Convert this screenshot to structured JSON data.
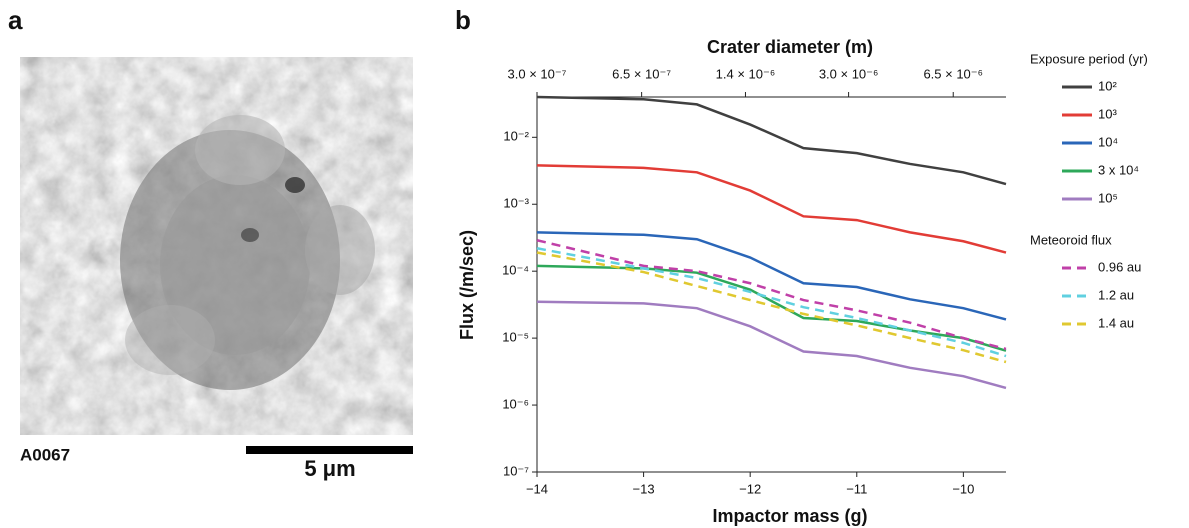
{
  "image_panel": {
    "label": "a",
    "sample": "A0067",
    "scale_bar": "5 μm"
  },
  "chart_data": {
    "type": "line",
    "panel_label": "b",
    "x_label": "Impactor mass (g)",
    "y_label": "Flux (/m/sec)",
    "x2_label": "Crater diameter (m)",
    "x": [
      -14,
      -13,
      -12.5,
      -12,
      -11.5,
      -11,
      -10.5,
      -10,
      -9.6
    ],
    "xlim": [
      -14,
      -9.6
    ],
    "xticks": [
      {
        "value": -14,
        "label": "−14"
      },
      {
        "value": -13,
        "label": "−13"
      },
      {
        "value": -12,
        "label": "−12"
      },
      {
        "value": -11,
        "label": "−11"
      },
      {
        "value": -10,
        "label": "−10"
      }
    ],
    "y_scale": "log",
    "ylim": [
      1e-07,
      0.04
    ],
    "yticks": [
      {
        "value": 1e-07,
        "label": "10⁻⁷"
      },
      {
        "value": 1e-06,
        "label": "10⁻⁶"
      },
      {
        "value": 1e-05,
        "label": "10⁻⁵"
      },
      {
        "value": 0.0001,
        "label": "10⁻⁴"
      },
      {
        "value": 0.001,
        "label": "10⁻³"
      },
      {
        "value": 0.01,
        "label": "10⁻²"
      }
    ],
    "x2_scale": "log",
    "x2lim": [
      3e-07,
      9.6e-06
    ],
    "x2ticks": [
      {
        "value": 3e-07,
        "label": "3.0 × 10⁻⁷"
      },
      {
        "value": 6.5e-07,
        "label": "6.5 × 10⁻⁷"
      },
      {
        "value": 1.4e-06,
        "label": "1.4 × 10⁻⁶"
      },
      {
        "value": 3e-06,
        "label": "3.0 × 10⁻⁶"
      },
      {
        "value": 6.5e-06,
        "label": "6.5 × 10⁻⁶"
      }
    ],
    "legend_groups": [
      {
        "title": "Exposure period (yr)"
      },
      {
        "title": "Meteoroid flux"
      }
    ],
    "series": [
      {
        "name": "10²",
        "color": "#404040",
        "group": 0,
        "dashed": false,
        "values": [
          0.04,
          0.037,
          0.031,
          0.0155,
          0.0069,
          0.0058,
          0.004,
          0.003,
          0.002
        ]
      },
      {
        "name": "10³",
        "color": "#e23c36",
        "group": 0,
        "dashed": false,
        "values": [
          0.0038,
          0.0035,
          0.003,
          0.0016,
          0.00066,
          0.00058,
          0.00038,
          0.00028,
          0.00019
        ]
      },
      {
        "name": "10⁴",
        "color": "#2a66b8",
        "group": 0,
        "dashed": false,
        "values": [
          0.00038,
          0.00035,
          0.0003,
          0.00016,
          6.6e-05,
          5.8e-05,
          3.8e-05,
          2.8e-05,
          1.9e-05
        ]
      },
      {
        "name": "3 x 10⁴",
        "color": "#2ea85a",
        "group": 0,
        "dashed": false,
        "values": [
          0.00012,
          0.00011,
          9.5e-05,
          5.3e-05,
          2e-05,
          1.8e-05,
          1.3e-05,
          1e-05,
          6.5e-06
        ]
      },
      {
        "name": "10⁵",
        "color": "#a07cc0",
        "group": 0,
        "dashed": false,
        "values": [
          3.5e-05,
          3.3e-05,
          2.8e-05,
          1.5e-05,
          6.3e-06,
          5.4e-06,
          3.6e-06,
          2.7e-06,
          1.8e-06
        ]
      },
      {
        "name": "0.96 au",
        "color": "#c040a8",
        "group": 1,
        "dashed": true,
        "values": [
          0.00029,
          0.00012,
          0.0001,
          6.6e-05,
          3.7e-05,
          2.6e-05,
          1.7e-05,
          1e-05,
          6.9e-06
        ]
      },
      {
        "name": "1.2 au",
        "color": "#60d0e0",
        "group": 1,
        "dashed": true,
        "values": [
          0.00022,
          0.00011,
          7.9e-05,
          4.9e-05,
          2.9e-05,
          2e-05,
          1.3e-05,
          8.5e-06,
          5.4e-06
        ]
      },
      {
        "name": "1.4 au",
        "color": "#e0c830",
        "group": 1,
        "dashed": true,
        "values": [
          0.00019,
          9.7e-05,
          6e-05,
          3.7e-05,
          2.3e-05,
          1.55e-05,
          1e-05,
          6.6e-06,
          4.4e-06
        ]
      }
    ]
  }
}
